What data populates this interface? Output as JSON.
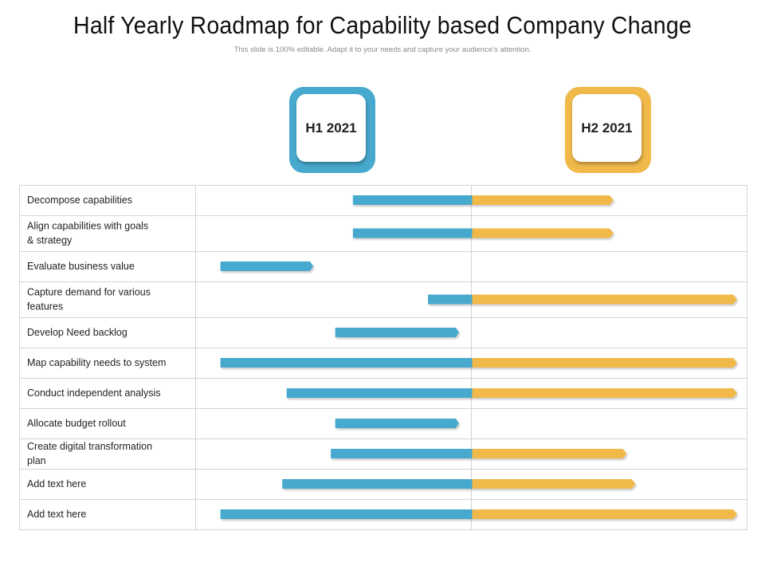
{
  "colors": {
    "h1": "#47a9cd",
    "h2": "#f1b94a",
    "grid": "#d4d4d4"
  },
  "chart_data": {
    "type": "gantt",
    "title": "Half Yearly Roadmap for Capability based Company Change",
    "subtitle": "This slide is 100% editable. Adapt it to your needs and capture your audience's attention.",
    "periods": [
      "H1 2021",
      "H2 2021"
    ],
    "time_unit": "months into 2021 (0-12)",
    "tasks": [
      {
        "label": "Decompose capabilities",
        "start": 3.3,
        "end": 9.2
      },
      {
        "label": "Align capabilities with goals & strategy",
        "start": 3.3,
        "end": 9.2
      },
      {
        "label": "Evaluate business value",
        "start": 0.3,
        "end": 2.4
      },
      {
        "label": "Capture demand for various features",
        "start": 5.0,
        "end": 12.0
      },
      {
        "label": "Develop Need backlog",
        "start": 2.9,
        "end": 5.7
      },
      {
        "label": "Map capability needs to system",
        "start": 0.3,
        "end": 12.0
      },
      {
        "label": "Conduct independent analysis",
        "start": 1.8,
        "end": 12.0
      },
      {
        "label": "Allocate budget rollout",
        "start": 2.9,
        "end": 5.7
      },
      {
        "label": "Create digital transformation plan",
        "start": 2.8,
        "end": 9.5
      },
      {
        "label": "Add text here",
        "start": 1.7,
        "end": 9.7
      },
      {
        "label": "Add text here",
        "start": 0.3,
        "end": 12.0
      }
    ]
  }
}
